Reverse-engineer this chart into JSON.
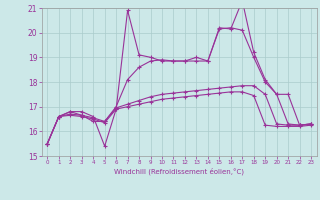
{
  "xlabel": "Windchill (Refroidissement éolien,°C)",
  "background_color": "#cce8e8",
  "grid_color": "#aacccc",
  "line_color": "#993399",
  "x_hours": [
    0,
    1,
    2,
    3,
    4,
    5,
    6,
    7,
    8,
    9,
    10,
    11,
    12,
    13,
    14,
    15,
    16,
    17,
    18,
    19,
    20,
    21,
    22,
    23
  ],
  "line1": [
    15.5,
    16.6,
    16.8,
    16.8,
    16.6,
    15.4,
    16.9,
    20.9,
    19.1,
    19.0,
    18.85,
    18.85,
    18.85,
    18.85,
    18.85,
    20.2,
    20.15,
    21.3,
    19.2,
    18.1,
    17.5,
    16.3,
    16.25,
    16.3
  ],
  "line2": [
    15.5,
    16.6,
    16.8,
    16.65,
    16.4,
    16.4,
    17.0,
    18.1,
    18.6,
    18.85,
    18.9,
    18.85,
    18.85,
    19.0,
    18.85,
    20.15,
    20.2,
    20.1,
    19.0,
    18.0,
    17.5,
    17.5,
    16.25,
    16.3
  ],
  "line3": [
    15.5,
    16.6,
    16.7,
    16.65,
    16.55,
    16.4,
    16.95,
    17.1,
    17.25,
    17.4,
    17.5,
    17.55,
    17.6,
    17.65,
    17.7,
    17.75,
    17.8,
    17.85,
    17.85,
    17.5,
    16.3,
    16.25,
    16.25,
    16.3
  ],
  "line4": [
    15.5,
    16.6,
    16.65,
    16.6,
    16.5,
    16.35,
    16.9,
    17.0,
    17.1,
    17.2,
    17.3,
    17.35,
    17.4,
    17.45,
    17.5,
    17.55,
    17.6,
    17.6,
    17.45,
    16.25,
    16.2,
    16.2,
    16.2,
    16.25
  ],
  "ylim": [
    15,
    21
  ],
  "yticks": [
    15,
    16,
    17,
    18,
    19,
    20,
    21
  ],
  "xticks": [
    0,
    1,
    2,
    3,
    4,
    5,
    6,
    7,
    8,
    9,
    10,
    11,
    12,
    13,
    14,
    15,
    16,
    17,
    18,
    19,
    20,
    21,
    22,
    23
  ],
  "figsize": [
    3.2,
    2.0
  ],
  "dpi": 100
}
